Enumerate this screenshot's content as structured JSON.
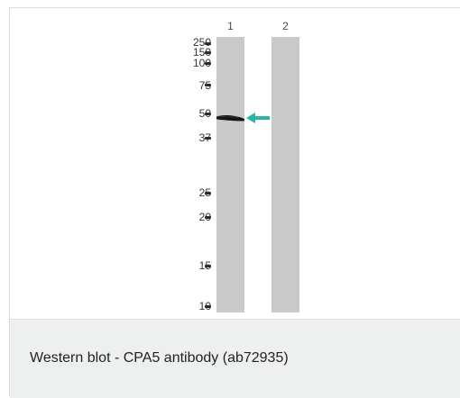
{
  "blot": {
    "lanes": [
      {
        "label": "1"
      },
      {
        "label": "2"
      }
    ],
    "markers": [
      "250",
      "150",
      "100",
      "75",
      "50",
      "37",
      "25",
      "20",
      "15",
      "10"
    ],
    "colors": {
      "lane": "#c9c9c9",
      "band": "#1a1a1a",
      "arrow": "#2bb3a6",
      "caption_background": "#eef0ef"
    },
    "band_icon": "protein-band-icon",
    "arrow_icon": "left-arrow-icon"
  },
  "caption": {
    "text": "Western blot - CPA5 antibody (ab72935)"
  }
}
